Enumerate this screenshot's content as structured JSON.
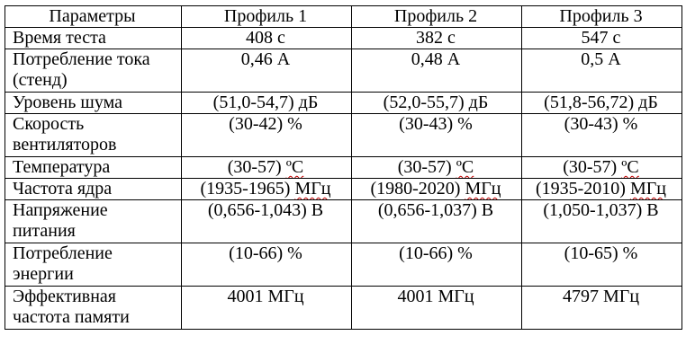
{
  "header": {
    "col0": "Параметры",
    "col1": "Профиль 1",
    "col2": "Профиль 2",
    "col3": "Профиль 3"
  },
  "rows": [
    {
      "label": "Время теста",
      "p1": "408 с",
      "p2": "382 с",
      "p3": "547 с"
    },
    {
      "label": "Потребление тока (стенд)",
      "p1": "0,46 А",
      "p2": "0,48 А",
      "p3": "0,5 А"
    },
    {
      "label": "Уровень шума",
      "p1": "(51,0-54,7) дБ",
      "p2": "(52,0-55,7) дБ",
      "p3": "(51,8-56,72) дБ"
    },
    {
      "label": "Скорость вентиляторов",
      "p1": "(30-42) %",
      "p2": "(30-43) %",
      "p3": "(30-43) %"
    },
    {
      "label": "Температура",
      "p1_pre": "(30-57) ",
      "p1_unit": "ºC",
      "p2_pre": "(30-57) ",
      "p2_unit": "ºC",
      "p3_pre": "(30-57) ",
      "p3_unit": "ºC"
    },
    {
      "label": "Частота ядра",
      "p1_pre": "(1935-1965) ",
      "p1_unit": "МГц",
      "p2_pre": "(1980-2020) ",
      "p2_unit": "МГц",
      "p3_pre": "(1935-2010) ",
      "p3_unit": "МГц"
    },
    {
      "label": "Напряжение питания",
      "p1": "(0,656-1,043) В",
      "p2": "(0,656-1,037) В",
      "p3": "(1,050-1,037) В"
    },
    {
      "label": "Потребление энергии",
      "p1": "(10-66) %",
      "p2": "(10-66) %",
      "p3": "(10-65) %"
    },
    {
      "label": "Эффективная частота памяти",
      "p1": "4001 МГц",
      "p2": "4001 МГц",
      "p3": "4797 МГц"
    }
  ]
}
